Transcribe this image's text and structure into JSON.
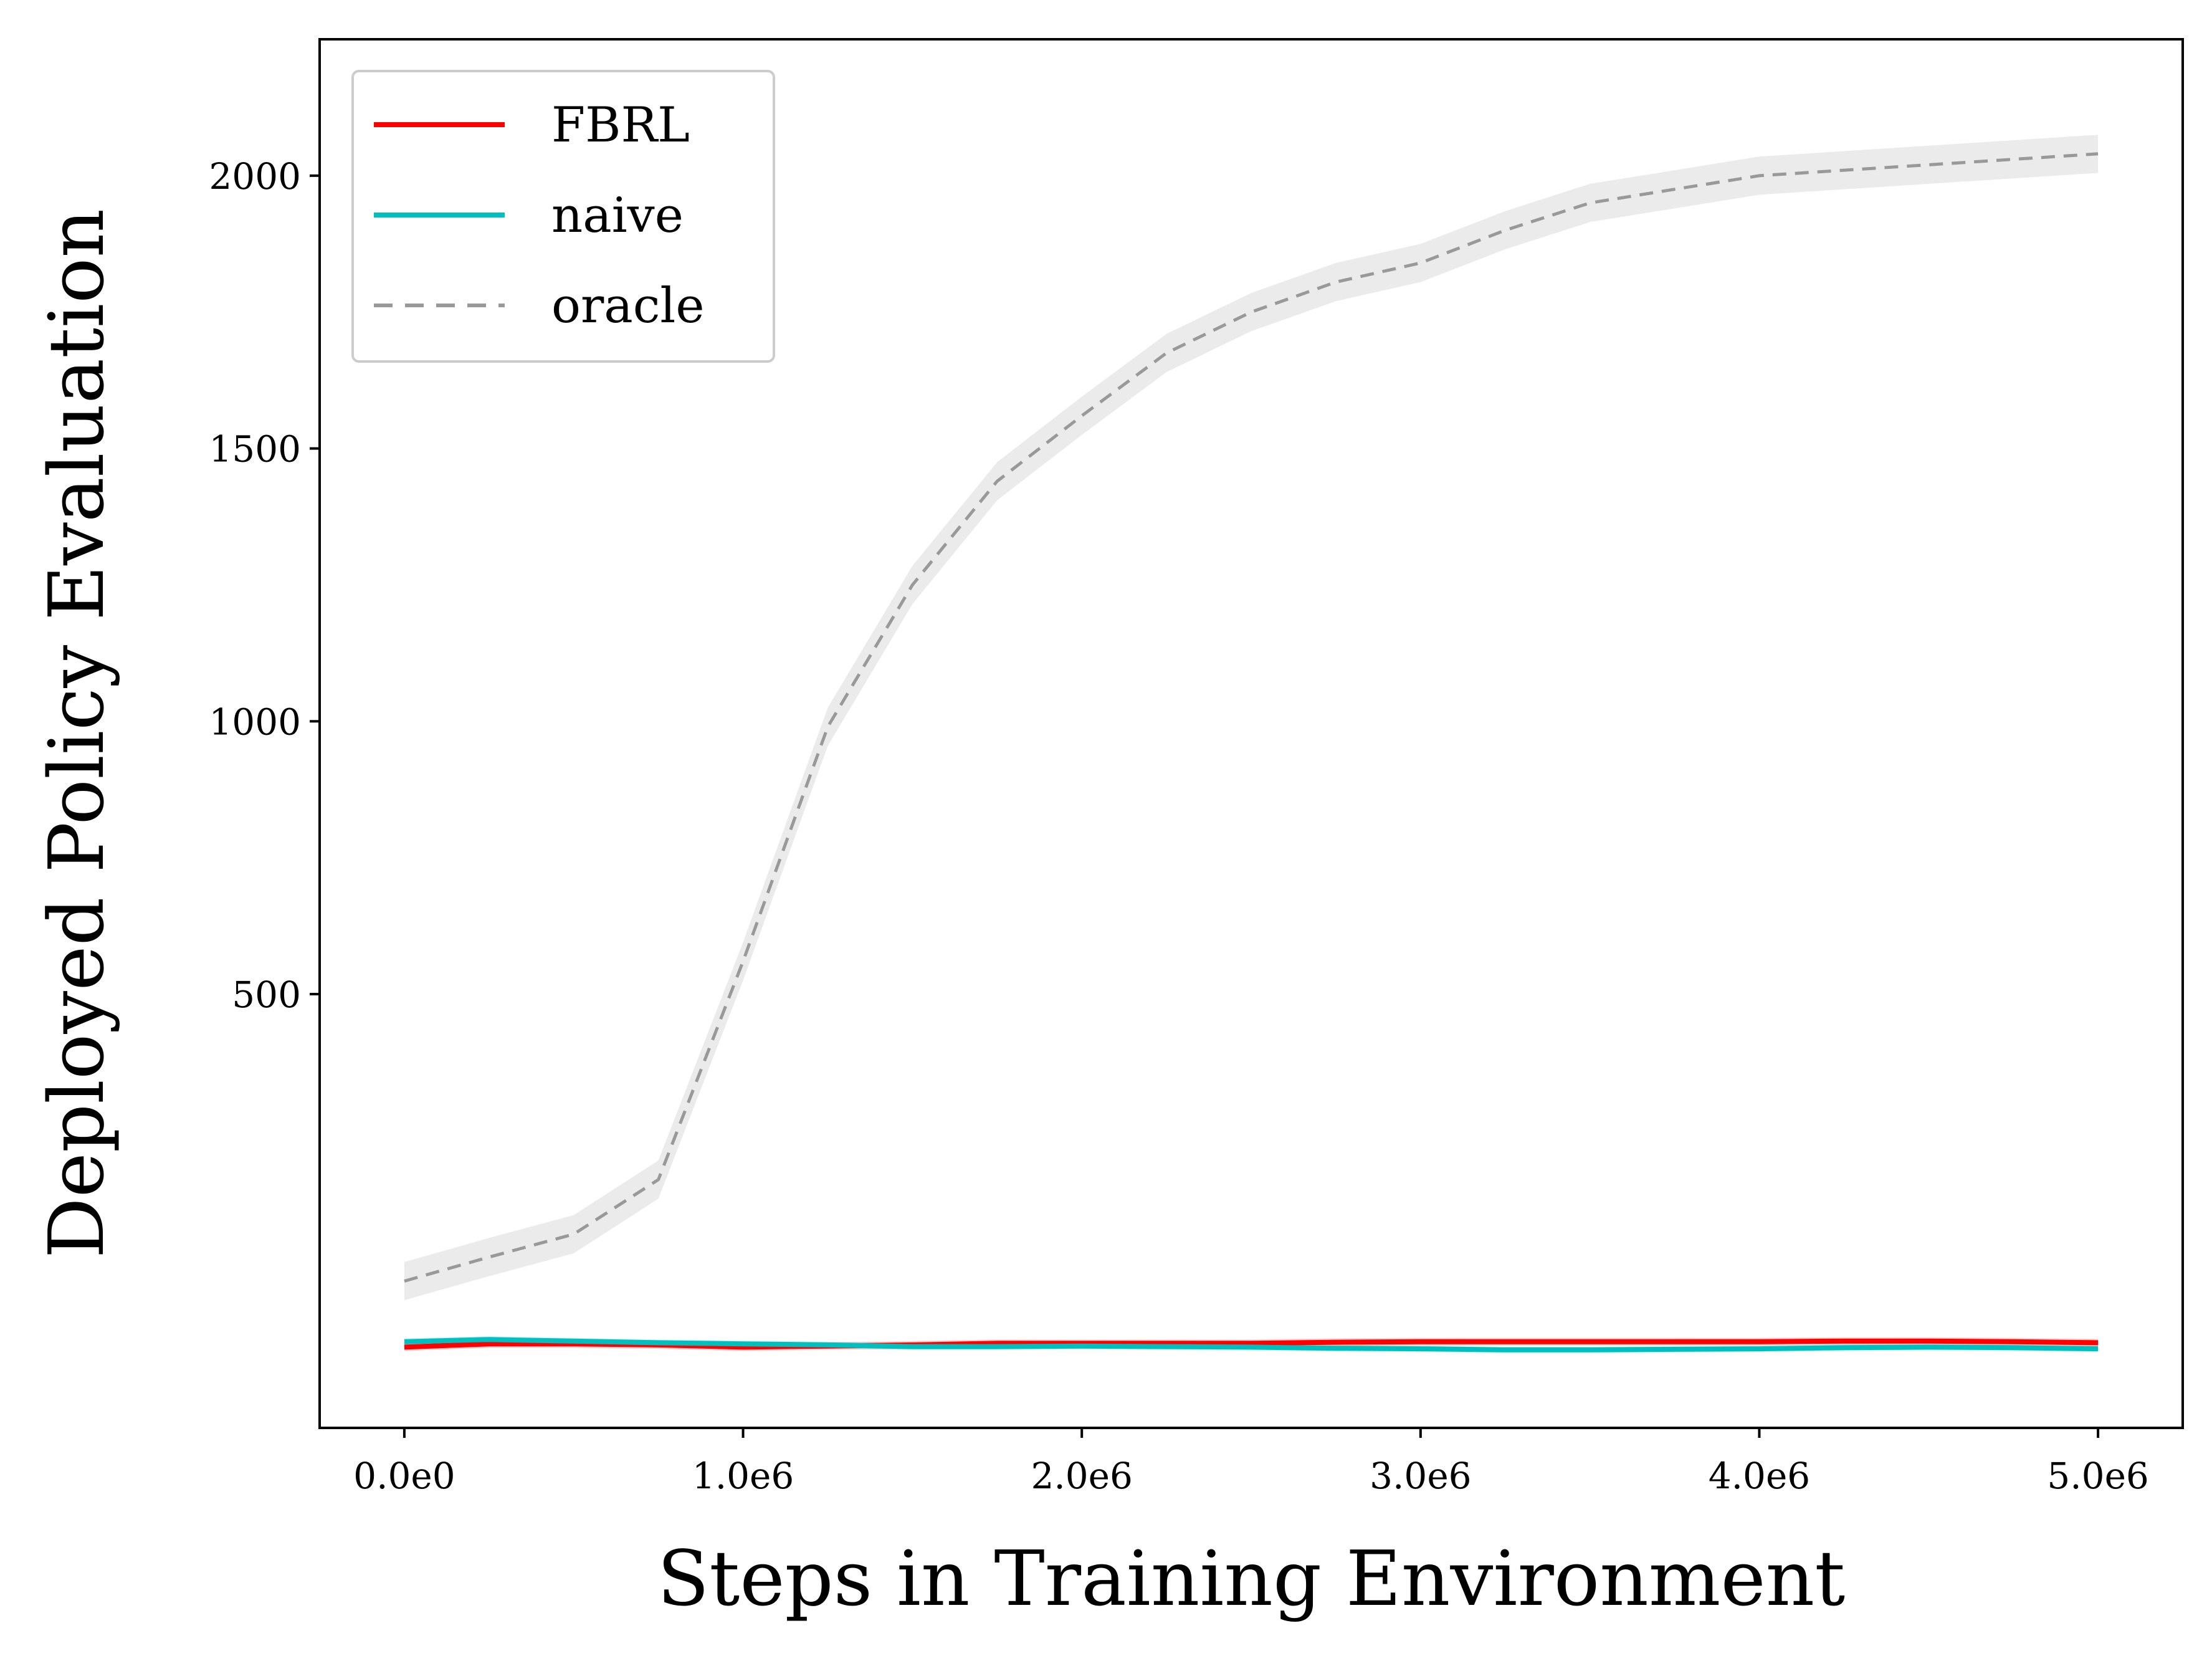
{
  "chart_data": {
    "type": "line",
    "title": "",
    "xlabel": "Steps in Training Environment",
    "ylabel": "Deployed Policy Evaluation",
    "xlim": [
      -250000,
      5250000
    ],
    "ylim": [
      -295,
      2250
    ],
    "x_ticks": [
      {
        "value": 0,
        "label": "0.0e0"
      },
      {
        "value": 1000000,
        "label": "1.0e6"
      },
      {
        "value": 2000000,
        "label": "2.0e6"
      },
      {
        "value": 3000000,
        "label": "3.0e6"
      },
      {
        "value": 4000000,
        "label": "4.0e6"
      },
      {
        "value": 5000000,
        "label": "5.0e6"
      }
    ],
    "y_ticks": [
      {
        "value": 500,
        "label": "500"
      },
      {
        "value": 1000,
        "label": "1000"
      },
      {
        "value": 1500,
        "label": "1500"
      },
      {
        "value": 2000,
        "label": "2000"
      }
    ],
    "grid": false,
    "legend_position": "top-left",
    "x": [
      0,
      250000,
      500000,
      750000,
      1000000,
      1250000,
      1500000,
      1750000,
      2000000,
      2250000,
      2500000,
      2750000,
      3000000,
      3250000,
      3500000,
      3750000,
      4000000,
      4250000,
      4500000,
      4750000,
      5000000
    ],
    "series": [
      {
        "name": "FBRL",
        "color": "#ff0000",
        "style": "solid",
        "values": [
          -147,
          -141,
          -141,
          -143,
          -147,
          -145,
          -143,
          -140,
          -140,
          -140,
          -140,
          -138,
          -137,
          -137,
          -137,
          -137,
          -137,
          -136,
          -136,
          -137,
          -139
        ],
        "band": 7
      },
      {
        "name": "naive",
        "color": "#00bfbf",
        "style": "solid",
        "values": [
          -137,
          -133,
          -136,
          -139,
          -141,
          -143,
          -146,
          -146,
          -145,
          -146,
          -147,
          -149,
          -150,
          -152,
          -152,
          -151,
          -150,
          -148,
          -147,
          -148,
          -150
        ],
        "band": 6
      },
      {
        "name": "oracle",
        "color": "#999999",
        "style": "dashed",
        "values": [
          -26,
          18,
          60,
          160,
          560,
          990,
          1250,
          1440,
          1560,
          1675,
          1750,
          1805,
          1840,
          1900,
          1950,
          1975,
          2000,
          2010,
          2020,
          2030,
          2040
        ],
        "band": 35
      }
    ]
  }
}
